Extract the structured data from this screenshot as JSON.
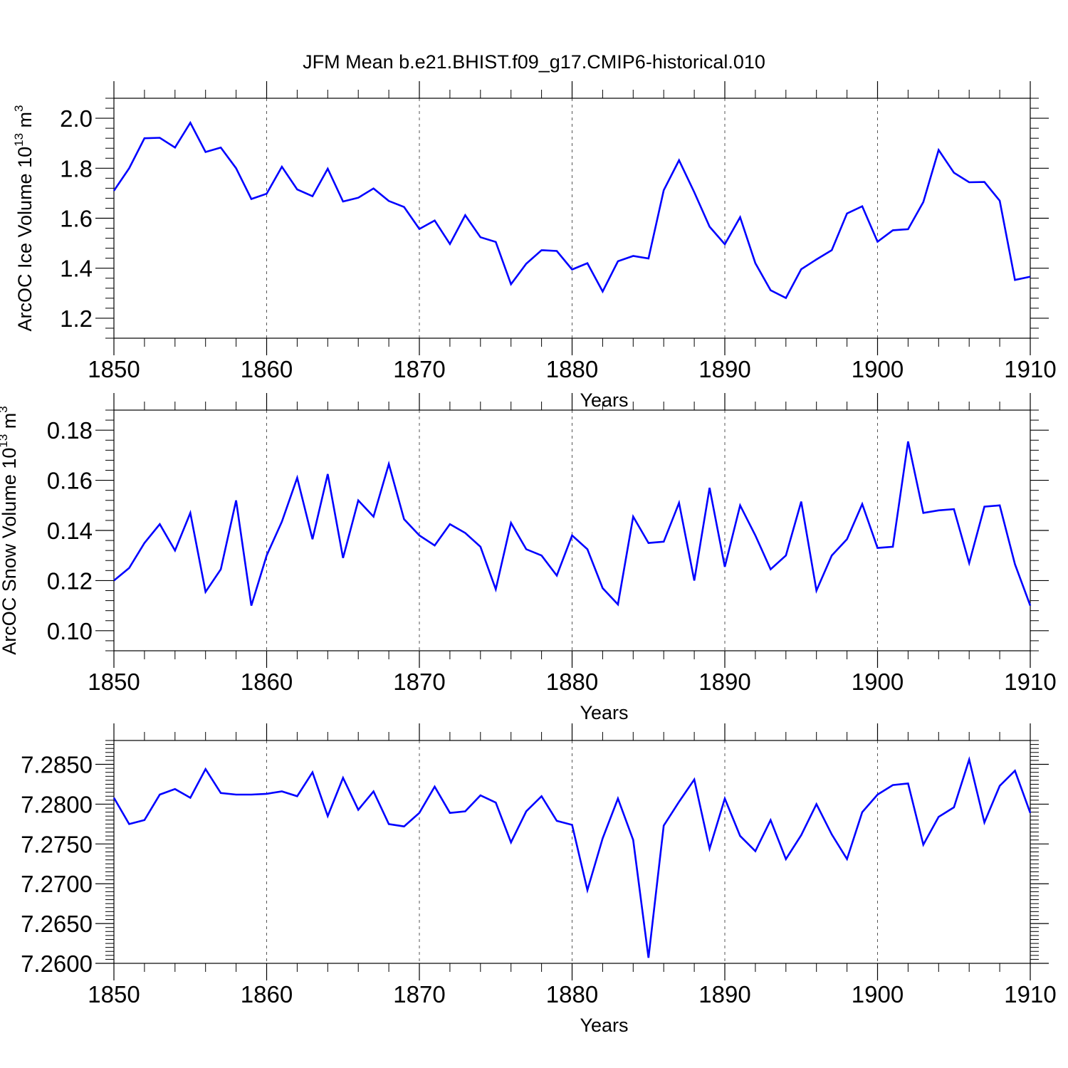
{
  "title": "JFM Mean b.e21.BHIST.f09_g17.CMIP6-historical.010",
  "line_color": "#0000ff",
  "chart_data": [
    {
      "type": "line",
      "id": "ice",
      "title": "JFM Mean b.e21.BHIST.f09_g17.CMIP6-historical.010",
      "xlabel": "Years",
      "ylabel": "ArcOC Ice Volume 10",
      "ylabel_sup": "13",
      "ylabel_unit": " m",
      "ylabel_unit_sup": "3",
      "xlim": [
        1850,
        1910
      ],
      "ylim": [
        1.12,
        2.08
      ],
      "x_ticks": [
        1850,
        1860,
        1870,
        1880,
        1890,
        1900,
        1910
      ],
      "x_tick_labels": [
        "1850",
        "1860",
        "1870",
        "1880",
        "1890",
        "1900",
        "1910"
      ],
      "y_ticks": [
        1.2,
        1.4,
        1.6,
        1.8,
        2.0
      ],
      "y_tick_labels": [
        "1.2",
        "1.4",
        "1.6",
        "1.8",
        "2.0"
      ],
      "y_minor_step": 0.04,
      "grid": "vertical dashed at major x ticks",
      "x": [
        1850,
        1851,
        1852,
        1853,
        1854,
        1855,
        1856,
        1857,
        1858,
        1859,
        1860,
        1861,
        1862,
        1863,
        1864,
        1865,
        1866,
        1867,
        1868,
        1869,
        1870,
        1871,
        1872,
        1873,
        1874,
        1875,
        1876,
        1877,
        1878,
        1879,
        1880,
        1881,
        1882,
        1883,
        1884,
        1885,
        1886,
        1887,
        1888,
        1889,
        1890,
        1891,
        1892,
        1893,
        1894,
        1895,
        1896,
        1897,
        1898,
        1899,
        1900,
        1901,
        1902,
        1903,
        1904,
        1905,
        1906,
        1907,
        1908,
        1909,
        1910
      ],
      "values": [
        1.71,
        1.8,
        1.92,
        1.922,
        1.883,
        1.982,
        1.865,
        1.883,
        1.8,
        1.677,
        1.698,
        1.806,
        1.715,
        1.688,
        1.798,
        1.667,
        1.682,
        1.719,
        1.669,
        1.645,
        1.557,
        1.591,
        1.497,
        1.612,
        1.524,
        1.505,
        1.336,
        1.418,
        1.472,
        1.469,
        1.395,
        1.42,
        1.307,
        1.428,
        1.449,
        1.439,
        1.712,
        1.832,
        1.704,
        1.566,
        1.496,
        1.604,
        1.42,
        1.312,
        1.281,
        1.396,
        1.435,
        1.472,
        1.619,
        1.648,
        1.506,
        1.552,
        1.556,
        1.665,
        1.873,
        1.782,
        1.744,
        1.745,
        1.67,
        1.353,
        1.366
      ]
    },
    {
      "type": "line",
      "id": "snow",
      "xlabel": "Years",
      "ylabel": "ArcOC Snow Volume 10",
      "ylabel_sup": "13",
      "ylabel_unit": " m",
      "ylabel_unit_sup": "3",
      "xlim": [
        1850,
        1910
      ],
      "ylim": [
        0.092,
        0.188
      ],
      "x_ticks": [
        1850,
        1860,
        1870,
        1880,
        1890,
        1900,
        1910
      ],
      "x_tick_labels": [
        "1850",
        "1860",
        "1870",
        "1880",
        "1890",
        "1900",
        "1910"
      ],
      "y_ticks": [
        0.1,
        0.12,
        0.14,
        0.16,
        0.18
      ],
      "y_tick_labels": [
        "0.10",
        "0.12",
        "0.14",
        "0.16",
        "0.18"
      ],
      "y_minor_step": 0.004,
      "grid": "vertical dashed at major x ticks",
      "x": [
        1850,
        1851,
        1852,
        1853,
        1854,
        1855,
        1856,
        1857,
        1858,
        1859,
        1860,
        1861,
        1862,
        1863,
        1864,
        1865,
        1866,
        1867,
        1868,
        1869,
        1870,
        1871,
        1872,
        1873,
        1874,
        1875,
        1876,
        1877,
        1878,
        1879,
        1880,
        1881,
        1882,
        1883,
        1884,
        1885,
        1886,
        1887,
        1888,
        1889,
        1890,
        1891,
        1892,
        1893,
        1894,
        1895,
        1896,
        1897,
        1898,
        1899,
        1900,
        1901,
        1902,
        1903,
        1904,
        1905,
        1906,
        1907,
        1908,
        1909,
        1910
      ],
      "values": [
        0.12,
        0.125,
        0.135,
        0.1425,
        0.132,
        0.147,
        0.1155,
        0.1245,
        0.152,
        0.11,
        0.13,
        0.1435,
        0.161,
        0.1365,
        0.1625,
        0.129,
        0.152,
        0.1455,
        0.1665,
        0.1445,
        0.138,
        0.134,
        0.1425,
        0.139,
        0.1335,
        0.1165,
        0.143,
        0.1325,
        0.13,
        0.122,
        0.138,
        0.1325,
        0.117,
        0.1105,
        0.1455,
        0.135,
        0.1355,
        0.151,
        0.12,
        0.157,
        0.1255,
        0.15,
        0.138,
        0.1245,
        0.13,
        0.1515,
        0.116,
        0.13,
        0.1365,
        0.1505,
        0.133,
        0.1335,
        0.1755,
        0.147,
        0.148,
        0.1485,
        0.127,
        0.1495,
        0.15,
        0.1265,
        0.11
      ]
    },
    {
      "type": "line",
      "id": "third",
      "xlabel": "Years",
      "ylabel": "",
      "xlim": [
        1850,
        1910
      ],
      "ylim": [
        7.26,
        7.288
      ],
      "x_ticks": [
        1850,
        1860,
        1870,
        1880,
        1890,
        1900,
        1910
      ],
      "x_tick_labels": [
        "1850",
        "1860",
        "1870",
        "1880",
        "1890",
        "1900",
        "1910"
      ],
      "y_ticks": [
        7.26,
        7.265,
        7.27,
        7.275,
        7.28,
        7.285
      ],
      "y_tick_labels": [
        "7.2600",
        "7.2650",
        "7.2700",
        "7.2750",
        "7.2800",
        "7.2850"
      ],
      "y_minor_step": 0.0005,
      "grid": "vertical dashed at major x ticks",
      "x": [
        1850,
        1851,
        1852,
        1853,
        1854,
        1855,
        1856,
        1857,
        1858,
        1859,
        1860,
        1861,
        1862,
        1863,
        1864,
        1865,
        1866,
        1867,
        1868,
        1869,
        1870,
        1871,
        1872,
        1873,
        1874,
        1875,
        1876,
        1877,
        1878,
        1879,
        1880,
        1881,
        1882,
        1883,
        1884,
        1885,
        1886,
        1887,
        1888,
        1889,
        1890,
        1891,
        1892,
        1893,
        1894,
        1895,
        1896,
        1897,
        1898,
        1899,
        1900,
        1901,
        1902,
        1903,
        1904,
        1905,
        1906,
        1907,
        1908,
        1909,
        1910
      ],
      "values": [
        7.2808,
        7.2775,
        7.278,
        7.2812,
        7.2819,
        7.2808,
        7.2844,
        7.2814,
        7.2812,
        7.2812,
        7.2813,
        7.2816,
        7.281,
        7.284,
        7.2785,
        7.2833,
        7.2793,
        7.2816,
        7.2775,
        7.2772,
        7.2789,
        7.2822,
        7.2789,
        7.2791,
        7.2811,
        7.2802,
        7.2752,
        7.2791,
        7.281,
        7.2779,
        7.2774,
        7.2692,
        7.2757,
        7.2807,
        7.2755,
        7.2607,
        7.2773,
        7.2803,
        7.2831,
        7.2744,
        7.2807,
        7.276,
        7.2741,
        7.278,
        7.2731,
        7.2761,
        7.28,
        7.2762,
        7.2731,
        7.279,
        7.2812,
        7.2824,
        7.2826,
        7.2749,
        7.2784,
        7.2796,
        7.2856,
        7.2777,
        7.2823,
        7.2842,
        7.2789
      ]
    }
  ]
}
